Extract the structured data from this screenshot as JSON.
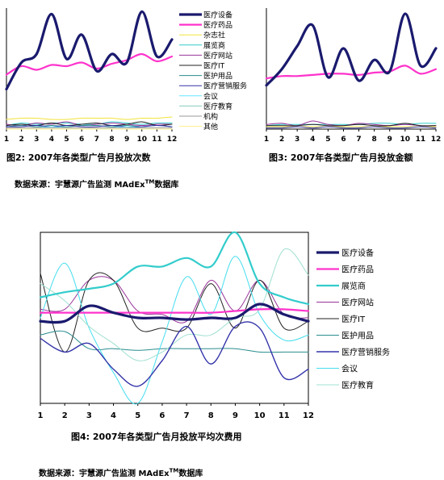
{
  "chart_data": [
    {
      "type": "line",
      "title": "图2: 2007年各类型广告月投放次数",
      "x": [
        1,
        2,
        3,
        4,
        5,
        6,
        7,
        8,
        9,
        10,
        11,
        12
      ],
      "legend_position": "right",
      "series": [
        {
          "name": "医疗设备",
          "color": "#1a1a6e",
          "width": 3.2,
          "values": [
            33,
            55,
            62,
            95,
            58,
            78,
            48,
            62,
            55,
            97,
            60,
            74
          ]
        },
        {
          "name": "医疗药品",
          "color": "#ff33cc",
          "width": 2.2,
          "values": [
            45,
            52,
            49,
            53,
            52,
            55,
            50,
            54,
            57,
            62,
            56,
            60
          ]
        },
        {
          "name": "杂志社",
          "color": "#f2e33a",
          "width": 1,
          "values": [
            8,
            9,
            9,
            8,
            8,
            9,
            9,
            9,
            8,
            9,
            9,
            10
          ]
        },
        {
          "name": "展览商",
          "color": "#33cccc",
          "width": 1,
          "values": [
            3,
            5,
            4,
            5,
            5,
            4,
            4,
            6,
            5,
            4,
            5,
            5
          ]
        },
        {
          "name": "医疗网站",
          "color": "#993399",
          "width": 1,
          "values": [
            4,
            3,
            5,
            4,
            6,
            3,
            4,
            5,
            4,
            3,
            4,
            4
          ]
        },
        {
          "name": "医疗IT",
          "color": "#222222",
          "width": 1,
          "values": [
            3,
            4,
            3,
            5,
            3,
            4,
            5,
            3,
            4,
            6,
            3,
            4
          ]
        },
        {
          "name": "医护用品",
          "color": "#2a8c8c",
          "width": 1,
          "values": [
            2,
            3,
            2,
            3,
            2,
            3,
            3,
            2,
            3,
            2,
            3,
            2
          ]
        },
        {
          "name": "医疗营销服务",
          "color": "#3333aa",
          "width": 1,
          "values": [
            2,
            2,
            3,
            2,
            3,
            2,
            2,
            3,
            2,
            2,
            3,
            2
          ]
        },
        {
          "name": "会议",
          "color": "#66e6ff",
          "width": 1,
          "values": [
            1,
            1,
            1,
            2,
            1,
            1,
            1,
            1,
            2,
            1,
            1,
            1
          ]
        },
        {
          "name": "医疗教育",
          "color": "#88ccbb",
          "width": 1,
          "values": [
            1,
            1,
            1,
            1,
            1,
            1,
            1,
            1,
            1,
            1,
            1,
            1
          ]
        },
        {
          "name": "机构",
          "color": "#999999",
          "width": 1,
          "values": [
            1,
            1,
            1,
            1,
            1,
            1,
            1,
            1,
            1,
            1,
            1,
            1
          ]
        },
        {
          "name": "其他",
          "color": "#ffee88",
          "width": 1,
          "values": [
            0,
            0,
            0,
            0,
            0,
            0,
            0,
            0,
            0,
            0,
            0,
            0
          ]
        }
      ]
    },
    {
      "type": "line",
      "title": "图3: 2007年各类型广告月投放金额",
      "x": [
        1,
        2,
        3,
        4,
        5,
        6,
        7,
        8,
        9,
        10,
        11,
        12
      ],
      "series": [
        {
          "color": "#1a1a6e",
          "width": 3.2,
          "values": [
            38,
            52,
            72,
            90,
            45,
            70,
            42,
            60,
            50,
            100,
            55,
            70
          ]
        },
        {
          "color": "#ff33cc",
          "width": 2.2,
          "values": [
            44,
            46,
            46,
            47,
            48,
            48,
            47,
            49,
            50,
            55,
            48,
            52
          ]
        },
        {
          "color": "#33cccc",
          "width": 1,
          "values": [
            3,
            4,
            4,
            4,
            4,
            4,
            4,
            5,
            5,
            4,
            5,
            5
          ]
        },
        {
          "color": "#993399",
          "width": 1,
          "values": [
            4,
            5,
            3,
            7,
            4,
            3,
            5,
            4,
            3,
            4,
            3,
            3
          ]
        },
        {
          "color": "#222222",
          "width": 1,
          "values": [
            3,
            3,
            3,
            4,
            3,
            3,
            4,
            3,
            3,
            5,
            3,
            3
          ]
        },
        {
          "color": "#f2e33a",
          "width": 1,
          "values": [
            2,
            2,
            2,
            2,
            2,
            2,
            2,
            2,
            2,
            2,
            2,
            2
          ]
        },
        {
          "color": "#3333aa",
          "width": 1,
          "values": [
            1,
            1,
            2,
            1,
            2,
            1,
            1,
            2,
            1,
            1,
            2,
            1
          ]
        }
      ]
    },
    {
      "type": "line",
      "title": "图4: 2007年各类型广告月投放平均次费用",
      "x": [
        1,
        2,
        3,
        4,
        5,
        6,
        7,
        8,
        9,
        10,
        11,
        12
      ],
      "legend_position": "right",
      "series": [
        {
          "name": "医疗设备",
          "color": "#1a1a6e",
          "width": 3.2,
          "values": [
            48,
            48,
            57,
            53,
            50,
            50,
            49,
            50,
            50,
            58,
            52,
            48
          ]
        },
        {
          "name": "医疗药品",
          "color": "#ff33cc",
          "width": 2.2,
          "values": [
            53,
            53,
            53,
            53,
            53,
            53,
            53,
            53,
            54,
            55,
            55,
            54
          ]
        },
        {
          "name": "展览商",
          "color": "#33cccc",
          "width": 2.2,
          "values": [
            62,
            65,
            67,
            70,
            80,
            80,
            85,
            80,
            100,
            70,
            62,
            58
          ]
        },
        {
          "name": "医疗网站",
          "color": "#993399",
          "width": 1,
          "values": [
            55,
            55,
            72,
            72,
            54,
            52,
            48,
            72,
            54,
            72,
            52,
            50
          ]
        },
        {
          "name": "医疗IT",
          "color": "#222222",
          "width": 1,
          "values": [
            76,
            30,
            72,
            72,
            44,
            44,
            44,
            70,
            44,
            72,
            44,
            48
          ]
        },
        {
          "name": "医护用品",
          "color": "#2a8c8c",
          "width": 1,
          "values": [
            40,
            42,
            32,
            32,
            31,
            32,
            32,
            32,
            32,
            30,
            30,
            30
          ]
        },
        {
          "name": "医疗营销服务",
          "color": "#3333aa",
          "width": 1.4,
          "values": [
            38,
            30,
            35,
            20,
            10,
            25,
            45,
            23,
            45,
            44,
            15,
            20
          ]
        },
        {
          "name": "会议",
          "color": "#44ddee",
          "width": 1,
          "values": [
            50,
            82,
            44,
            18,
            0,
            36,
            74,
            52,
            86,
            52,
            37,
            40
          ]
        },
        {
          "name": "医疗教育",
          "color": "#a0e0d0",
          "width": 1,
          "values": [
            70,
            60,
            45,
            35,
            25,
            30,
            40,
            40,
            50,
            55,
            90,
            75
          ]
        }
      ]
    }
  ],
  "captions": {
    "fig4": "图4: 2007年各类型广告月投放平均次费用",
    "source_text": "数据来源：宇慧源广告监测 MAdEx",
    "source_tm": "TM",
    "source_suffix": "数据库"
  }
}
